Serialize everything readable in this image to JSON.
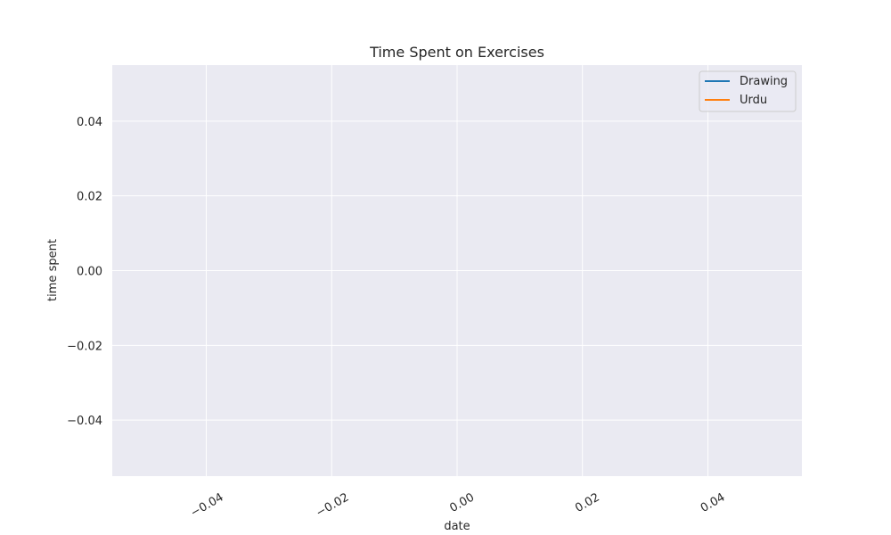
{
  "chart_data": {
    "type": "line",
    "title": "Time Spent on Exercises",
    "xlabel": "date",
    "ylabel": "time spent",
    "xlim": [
      -0.055,
      0.055
    ],
    "ylim": [
      -0.055,
      0.055
    ],
    "x_ticks": [
      -0.04,
      -0.02,
      0.0,
      0.02,
      0.04
    ],
    "x_tick_labels": [
      "−0.04",
      "−0.02",
      "0.00",
      "0.02",
      "0.04"
    ],
    "y_ticks": [
      0.04,
      0.02,
      0.0,
      -0.02,
      -0.04
    ],
    "y_tick_labels": [
      "0.04",
      "0.02",
      "0.00",
      "−0.02",
      "−0.04"
    ],
    "grid": true,
    "legend_position": "top-right",
    "series": [
      {
        "name": "Drawing",
        "color": "#1f77b4",
        "x": [],
        "y": []
      },
      {
        "name": "Urdu",
        "color": "#ff7f0e",
        "x": [],
        "y": []
      }
    ],
    "colors": {
      "plot_background": "#eaeaf2",
      "grid": "#ffffff",
      "text": "#262626"
    }
  }
}
